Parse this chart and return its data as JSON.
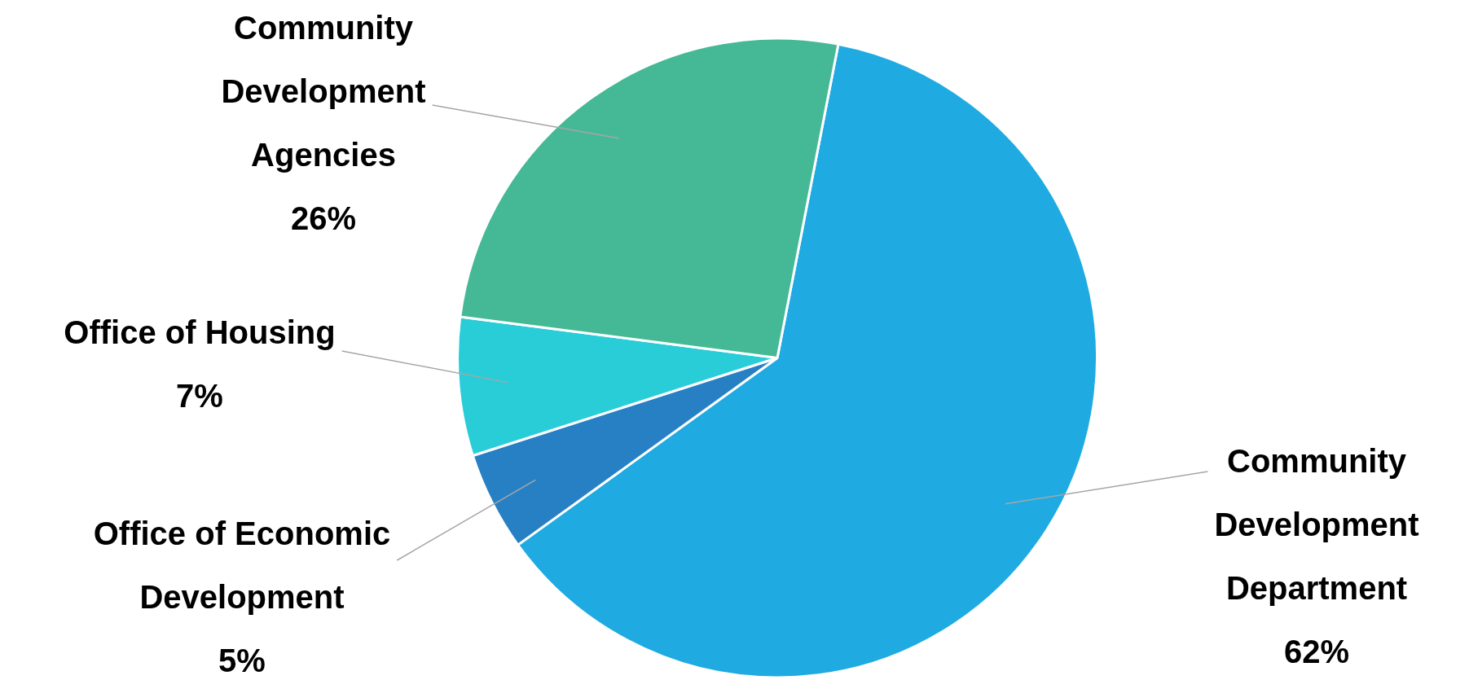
{
  "chart_data": {
    "type": "pie",
    "categories": [
      "Community Development Department",
      "Office of Economic Development",
      "Office of Housing",
      "Community Development Agencies"
    ],
    "values": [
      62,
      5,
      7,
      26
    ],
    "colors": [
      "#1fabe2",
      "#2880c4",
      "#29cdd8",
      "#45b995"
    ],
    "value_labels": [
      "62%",
      "5%",
      "7%",
      "26%"
    ],
    "legend": false
  }
}
